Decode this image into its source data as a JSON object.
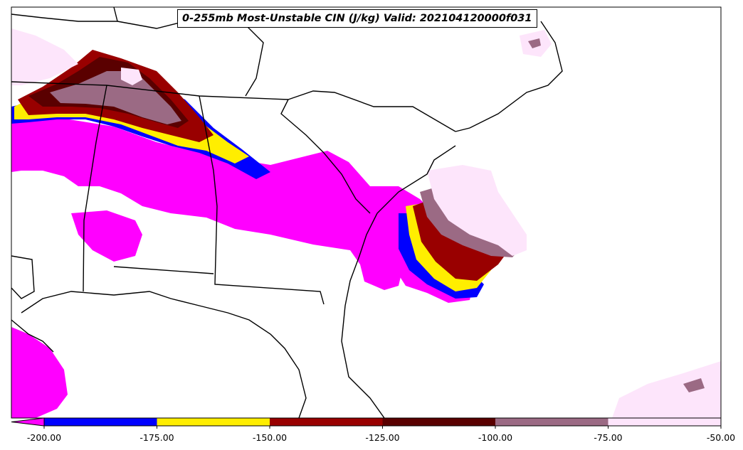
{
  "title": "0-255mb Most-Unstable CIN (J/kg) Valid: 202104120000f031",
  "colorbar": {
    "ticks": [
      "-200.00",
      "-175.00",
      "-150.00",
      "-125.00",
      "-100.00",
      "-75.00",
      "-50.00"
    ],
    "bins": [
      {
        "range": [
          -200,
          -175
        ],
        "color": "#0000ff"
      },
      {
        "range": [
          -175,
          -150
        ],
        "color": "#ffee00"
      },
      {
        "range": [
          -150,
          -125
        ],
        "color": "#990000"
      },
      {
        "range": [
          -125,
          -100
        ],
        "color": "#5a0000"
      },
      {
        "range": [
          -100,
          -75
        ],
        "color": "#9b6a84"
      },
      {
        "range": [
          -75,
          -50
        ],
        "color": "#fde5fb"
      }
    ],
    "under_color": "#ff00ff"
  }
}
